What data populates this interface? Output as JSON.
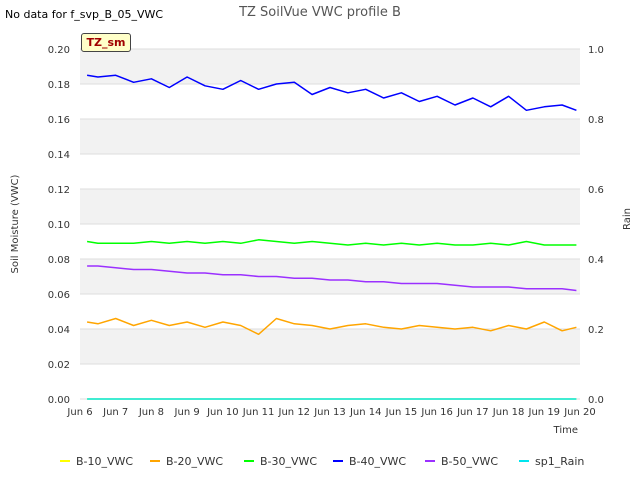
{
  "header": {
    "note": "No data for f_svp_B_05_VWC",
    "site_label": "TZ_sm"
  },
  "chart_data": {
    "type": "line",
    "title": "TZ SoilVue VWC profile B",
    "xlabel": "Time",
    "ylabel": "Soil Moisture (VWC)",
    "y2label": "Rain",
    "x_ticks": [
      "Jun 6",
      "Jun 7",
      "Jun 8",
      "Jun 9",
      "Jun 10",
      "Jun 11",
      "Jun 12",
      "Jun 13",
      "Jun 14",
      "Jun 15",
      "Jun 16",
      "Jun 17",
      "Jun 18",
      "Jun 19",
      "Jun 20"
    ],
    "xlim_days": [
      6,
      20
    ],
    "ylim": [
      0,
      0.2
    ],
    "y_ticks": [
      "0.00",
      "0.02",
      "0.04",
      "0.06",
      "0.08",
      "0.10",
      "0.12",
      "0.14",
      "0.16",
      "0.18",
      "0.20"
    ],
    "y2lim": [
      0,
      1.0
    ],
    "y2_ticks": [
      "0.0",
      "0.2",
      "0.4",
      "0.6",
      "0.8",
      "1.0"
    ],
    "grid": true,
    "legend_position": "bottom",
    "x_days": [
      6.2,
      6.5,
      7,
      7.5,
      8,
      8.5,
      9,
      9.5,
      10,
      10.5,
      11,
      11.5,
      12,
      12.5,
      13,
      13.5,
      14,
      14.5,
      15,
      15.5,
      16,
      16.5,
      17,
      17.5,
      18,
      18.5,
      19,
      19.5,
      19.9
    ],
    "series": [
      {
        "name": "B-10_VWC",
        "color": "#ffff00",
        "values": [
          0,
          0,
          0,
          0,
          0,
          0,
          0,
          0,
          0,
          0,
          0,
          0,
          0,
          0,
          0,
          0,
          0,
          0,
          0,
          0,
          0,
          0,
          0,
          0,
          0,
          0,
          0,
          0,
          0
        ]
      },
      {
        "name": "B-20_VWC",
        "color": "#ffa500",
        "values": [
          0.044,
          0.043,
          0.046,
          0.042,
          0.045,
          0.042,
          0.044,
          0.041,
          0.044,
          0.042,
          0.037,
          0.046,
          0.043,
          0.042,
          0.04,
          0.042,
          0.043,
          0.041,
          0.04,
          0.042,
          0.041,
          0.04,
          0.041,
          0.039,
          0.042,
          0.04,
          0.044,
          0.039,
          0.041
        ]
      },
      {
        "name": "B-30_VWC",
        "color": "#00ff00",
        "values": [
          0.09,
          0.089,
          0.089,
          0.089,
          0.09,
          0.089,
          0.09,
          0.089,
          0.09,
          0.089,
          0.091,
          0.09,
          0.089,
          0.09,
          0.089,
          0.088,
          0.089,
          0.088,
          0.089,
          0.088,
          0.089,
          0.088,
          0.088,
          0.089,
          0.088,
          0.09,
          0.088,
          0.088,
          0.088
        ]
      },
      {
        "name": "B-40_VWC",
        "color": "#0000ff",
        "values": [
          0.185,
          0.184,
          0.185,
          0.181,
          0.183,
          0.178,
          0.184,
          0.179,
          0.177,
          0.182,
          0.177,
          0.18,
          0.181,
          0.174,
          0.178,
          0.175,
          0.177,
          0.172,
          0.175,
          0.17,
          0.173,
          0.168,
          0.172,
          0.167,
          0.173,
          0.165,
          0.167,
          0.168,
          0.165
        ]
      },
      {
        "name": "B-50_VWC",
        "color": "#9b30ff",
        "values": [
          0.076,
          0.076,
          0.075,
          0.074,
          0.074,
          0.073,
          0.072,
          0.072,
          0.071,
          0.071,
          0.07,
          0.07,
          0.069,
          0.069,
          0.068,
          0.068,
          0.067,
          0.067,
          0.066,
          0.066,
          0.066,
          0.065,
          0.064,
          0.064,
          0.064,
          0.063,
          0.063,
          0.063,
          0.062
        ]
      },
      {
        "name": "sp1_Rain",
        "color": "#00e5ee",
        "axis": "y2",
        "values": [
          0,
          0,
          0,
          0,
          0,
          0,
          0,
          0,
          0,
          0,
          0,
          0,
          0,
          0,
          0,
          0,
          0,
          0,
          0,
          0,
          0,
          0,
          0,
          0,
          0,
          0,
          0,
          0,
          0
        ]
      }
    ]
  }
}
